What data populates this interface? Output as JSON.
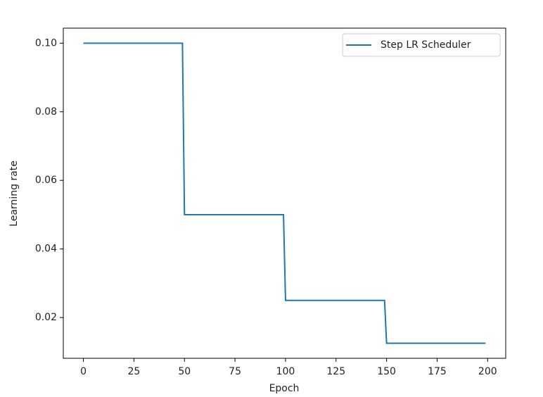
{
  "chart_data": {
    "type": "line",
    "xlabel": "Epoch",
    "ylabel": "Learning rate",
    "x": [
      0,
      49,
      50,
      99,
      100,
      149,
      150,
      199
    ],
    "series": [
      {
        "name": "Step LR Scheduler",
        "color": "#1f77b4",
        "values": [
          0.1,
          0.1,
          0.05,
          0.05,
          0.025,
          0.025,
          0.0125,
          0.0125
        ]
      }
    ],
    "xlim": [
      -9.95,
      208.95
    ],
    "xticks": [
      0,
      25,
      50,
      75,
      100,
      125,
      150,
      175,
      200
    ],
    "ylim": [
      0.008125,
      0.104375
    ],
    "yticks": [
      0.02,
      0.04,
      0.06,
      0.08,
      {
        "value": 0.1,
        "label": "0.10"
      }
    ],
    "grid": false,
    "legend": "upper right"
  }
}
